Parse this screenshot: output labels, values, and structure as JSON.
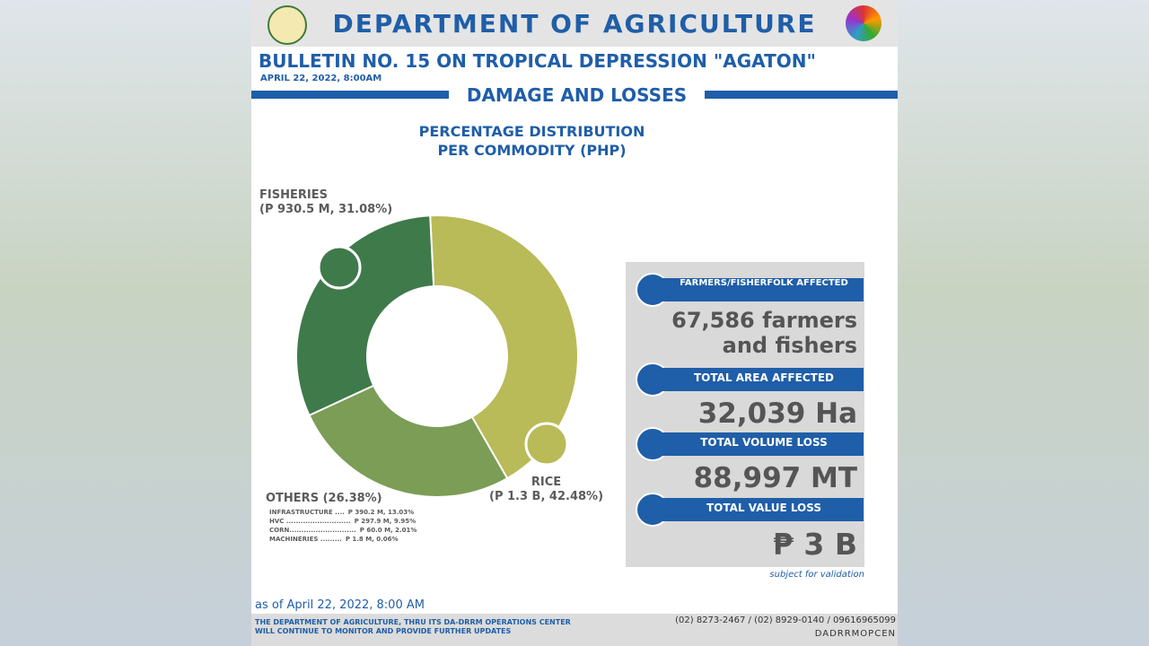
{
  "header": {
    "title": "DEPARTMENT OF AGRICULTURE",
    "bulletin": "BULLETIN NO. 15 ON TROPICAL DEPRESSION \"AGATON\"",
    "date": "APRIL 22, 2022, 8:00AM",
    "section": "DAMAGE AND LOSSES"
  },
  "chart_data": {
    "type": "donut",
    "title": "PERCENTAGE DISTRIBUTION PER COMMODITY (PHP)",
    "categories": [
      "RICE",
      "OTHERS",
      "FISHERIES"
    ],
    "values": [
      42.48,
      26.38,
      31.08
    ],
    "value_labels": [
      "(P 1.3 B, 42.48%)",
      "(26.38%)",
      "(P 930.5 M, 31.08%)"
    ],
    "colors": [
      "#b9ba58",
      "#7b9d55",
      "#3f7a4b"
    ]
  },
  "others_breakdown": [
    {
      "name": "INFRASTRUCTURE ....",
      "value": "P 390.2 M, 13.03%"
    },
    {
      "name": "HVC ...........................",
      "value": "P 297.9 M, 9.95%"
    },
    {
      "name": "CORN............................",
      "value": "P 60.0 M, 2.01%"
    },
    {
      "name": "MACHINERIES .........",
      "value": "P 1.8 M, 0.06%"
    }
  ],
  "stats": [
    {
      "label": "FARMERS/FISHERFOLK AFFECTED",
      "value": "67,586 farmers and fishers"
    },
    {
      "label": "TOTAL AREA AFFECTED",
      "value": "32,039 Ha"
    },
    {
      "label": "TOTAL VOLUME LOSS",
      "value": "88,997 MT"
    },
    {
      "label": "TOTAL VALUE LOSS",
      "value": "₱ 3 B"
    }
  ],
  "note": "subject for validation",
  "footer": {
    "as_of": "as of April 22, 2022, 8:00 AM",
    "message": "THE DEPARTMENT OF AGRICULTURE, THRU ITS DA-DRRM OPERATIONS CENTER WILL CONTINUE TO MONITOR AND PROVIDE FURTHER UPDATES",
    "phone": "(02) 8273-2467 / (02) 8929-0140 / 09616965099",
    "facebook": "DADRRMOPCEN"
  }
}
